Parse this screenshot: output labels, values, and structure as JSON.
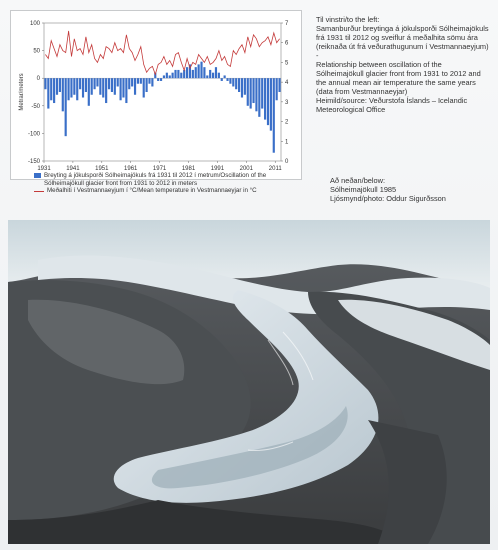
{
  "caption_right": {
    "heading": "Til vinstri/to the left:",
    "is_text": "Samanburður breytinga á jökulsporði Sólheimajökuls frá 1931 til 2012 og sveiflur á meðalhita sömu ára (reiknaða út frá veðurathugunum í Vestmannaeyjum) -",
    "en_text": "Relationship between oscillation of the Sólheimajökull glacier front from 1931 to 2012 and the annual mean air temperature the same years (data from Vestmannaeyjar)",
    "source": "Heimild/source: Veðurstofa Íslands – Icelandic Meteorological Office"
  },
  "photo_caption": {
    "line1": "Að neðan/below:",
    "line2": "Sólheimajökull 1985",
    "line3": "Ljósmynd/photo: Oddur Sigurðsson"
  },
  "legend": {
    "bar_label": "Breyting á jökulsporði Sólheimajökuls frá 1931 til 2012 í metrum/Oscillation of the Sólheimajökull glacier front from 1931 to 2012 in meters",
    "line_label": "Meðalhiti í Vestmannaeyjum í °C/Mean temperature in Vestmannaeyjar in °C"
  },
  "colors": {
    "bar": "#3a6fc8",
    "line": "#c43a3a"
  },
  "chart_data": {
    "type": "bar",
    "title": "",
    "ylabel": "Metrar/meters",
    "ylim": [
      -150,
      100
    ],
    "y_ticks": [
      100,
      50,
      0,
      -50,
      -100,
      -150
    ],
    "y2lim": [
      0,
      7
    ],
    "y2_ticks": [
      7,
      6,
      5,
      4,
      3,
      2,
      1,
      0
    ],
    "x_ticks": [
      "1931",
      "1941",
      "1951",
      "1961",
      "1971",
      "1981",
      "1991",
      "2001",
      "2011"
    ],
    "x": [
      1931,
      1932,
      1933,
      1934,
      1935,
      1936,
      1937,
      1938,
      1939,
      1940,
      1941,
      1942,
      1943,
      1944,
      1945,
      1946,
      1947,
      1948,
      1949,
      1950,
      1951,
      1952,
      1953,
      1954,
      1955,
      1956,
      1957,
      1958,
      1959,
      1960,
      1961,
      1962,
      1963,
      1964,
      1965,
      1966,
      1967,
      1968,
      1969,
      1970,
      1971,
      1972,
      1973,
      1974,
      1975,
      1976,
      1977,
      1978,
      1979,
      1980,
      1981,
      1982,
      1983,
      1984,
      1985,
      1986,
      1987,
      1988,
      1989,
      1990,
      1991,
      1992,
      1993,
      1994,
      1995,
      1996,
      1997,
      1998,
      1999,
      2000,
      2001,
      2002,
      2003,
      2004,
      2005,
      2006,
      2007,
      2008,
      2009,
      2010,
      2011,
      2012
    ],
    "series": [
      {
        "name": "Breyting á jökulsporði Sólheimajökuls frá 1931 til 2012 í metrum/Oscillation of the Sólheimajökull glacier front from 1931 to 2012 in meters",
        "type": "bar",
        "values": [
          -20,
          -55,
          -40,
          -45,
          -30,
          -25,
          -60,
          -105,
          -40,
          -35,
          -30,
          -40,
          -20,
          -35,
          -25,
          -50,
          -30,
          -20,
          -15,
          -30,
          -35,
          -45,
          -20,
          -25,
          -30,
          -15,
          -40,
          -35,
          -45,
          -20,
          -15,
          -30,
          -10,
          -10,
          -35,
          -25,
          -10,
          -15,
          10,
          -5,
          -5,
          5,
          10,
          5,
          10,
          15,
          15,
          10,
          15,
          20,
          25,
          15,
          20,
          25,
          30,
          20,
          5,
          15,
          10,
          20,
          10,
          -5,
          5,
          -5,
          -10,
          -15,
          -20,
          -25,
          -35,
          -30,
          -50,
          -55,
          -45,
          -60,
          -70,
          -55,
          -75,
          -85,
          -95,
          -135,
          -40,
          -25
        ]
      },
      {
        "name": "Meðalhiti í Vestmannaeyjum í °C/Mean temperature in Vestmannaeyjar in °C",
        "type": "line",
        "axis": "right",
        "values": [
          5.4,
          5.2,
          6.1,
          5.7,
          5.3,
          5.9,
          5.6,
          5.5,
          6.6,
          5.3,
          6.2,
          5.6,
          5.7,
          5.4,
          6.3,
          5.5,
          5.9,
          5.2,
          5.0,
          5.4,
          5.2,
          5.8,
          5.7,
          5.5,
          6.0,
          5.6,
          5.7,
          5.5,
          6.4,
          5.7,
          5.5,
          5.1,
          5.4,
          5.8,
          4.9,
          4.5,
          4.7,
          4.8,
          4.4,
          4.9,
          5.0,
          5.3,
          4.9,
          5.1,
          4.8,
          5.4,
          5.5,
          5.0,
          4.6,
          5.2,
          4.7,
          5.0,
          4.9,
          5.4,
          5.2,
          5.0,
          5.3,
          4.9,
          5.0,
          5.2,
          5.6,
          5.1,
          5.3,
          4.9,
          4.8,
          5.6,
          5.4,
          5.7,
          5.9,
          5.5,
          6.3,
          5.8,
          6.4,
          6.2,
          5.8,
          6.0,
          6.1,
          6.3,
          5.9,
          6.5,
          6.0,
          6.2
        ]
      }
    ]
  }
}
